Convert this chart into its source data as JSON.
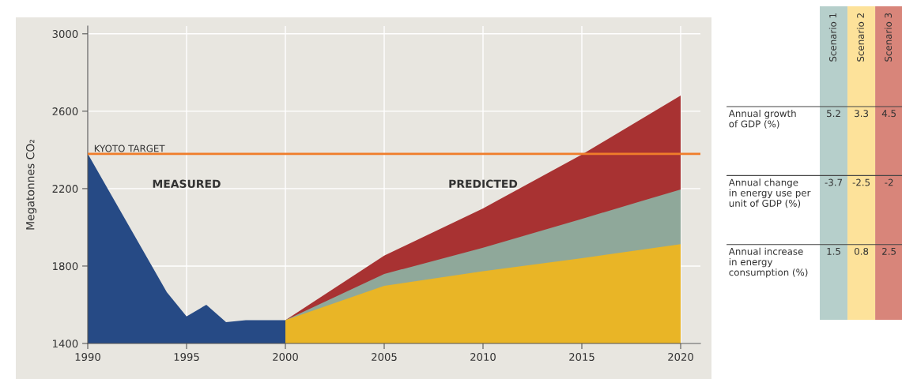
{
  "chart_data": [
    {
      "type": "area",
      "ylabel": "Megatonnes CO₂",
      "xlim": [
        1990,
        2021
      ],
      "ylim": [
        1400,
        3040
      ],
      "xticks": [
        1990,
        1995,
        2000,
        2005,
        2010,
        2015,
        2020
      ],
      "yticks": [
        1400,
        1800,
        2200,
        2600,
        3000
      ],
      "grid": true,
      "series": [
        {
          "color": "#264a85",
          "x": [
            1990,
            1994,
            1995,
            1996,
            1997,
            1998,
            1999,
            2000
          ],
          "values": [
            2380,
            1665,
            1540,
            1600,
            1510,
            1520,
            1520,
            1520
          ]
        },
        {
          "color": "#a83232",
          "x": [
            2000,
            2005,
            2010,
            2015,
            2020
          ],
          "values": [
            1520,
            1854,
            2098,
            2376,
            2681
          ]
        },
        {
          "color": "#8fa89a",
          "x": [
            2000,
            2005,
            2010,
            2015,
            2020
          ],
          "values": [
            1520,
            1759,
            1895,
            2044,
            2196
          ]
        },
        {
          "color": "#e9b526",
          "x": [
            2000,
            2005,
            2010,
            2015,
            2020
          ],
          "values": [
            1520,
            1698,
            1773,
            1841,
            1913
          ]
        }
      ],
      "ref_lines": [
        {
          "axis": "y",
          "value": 2380,
          "label": "KYOTO TARGET",
          "color": "#f07d2a"
        }
      ],
      "annotations": [
        "MEASURED",
        "PREDICTED"
      ]
    },
    {
      "type": "other",
      "categories": [
        "Scenario 1",
        "Scenario 2",
        "Scenario 3"
      ],
      "colors": [
        "#b6cfcb",
        "#fde29a",
        "#d8857a"
      ],
      "y_categories": [
        "Annual growth\nof GDP (%)",
        "Annual change\nin energy use per\nunit of GDP (%)",
        "Annual increase\nin energy\nconsumption (%)"
      ],
      "cell_labels": [
        [
          "5.2",
          "3.3",
          "4.5"
        ],
        [
          "-3.7",
          "-2.5",
          "-2"
        ],
        [
          "1.5",
          "0.8",
          "2.5"
        ]
      ]
    }
  ]
}
